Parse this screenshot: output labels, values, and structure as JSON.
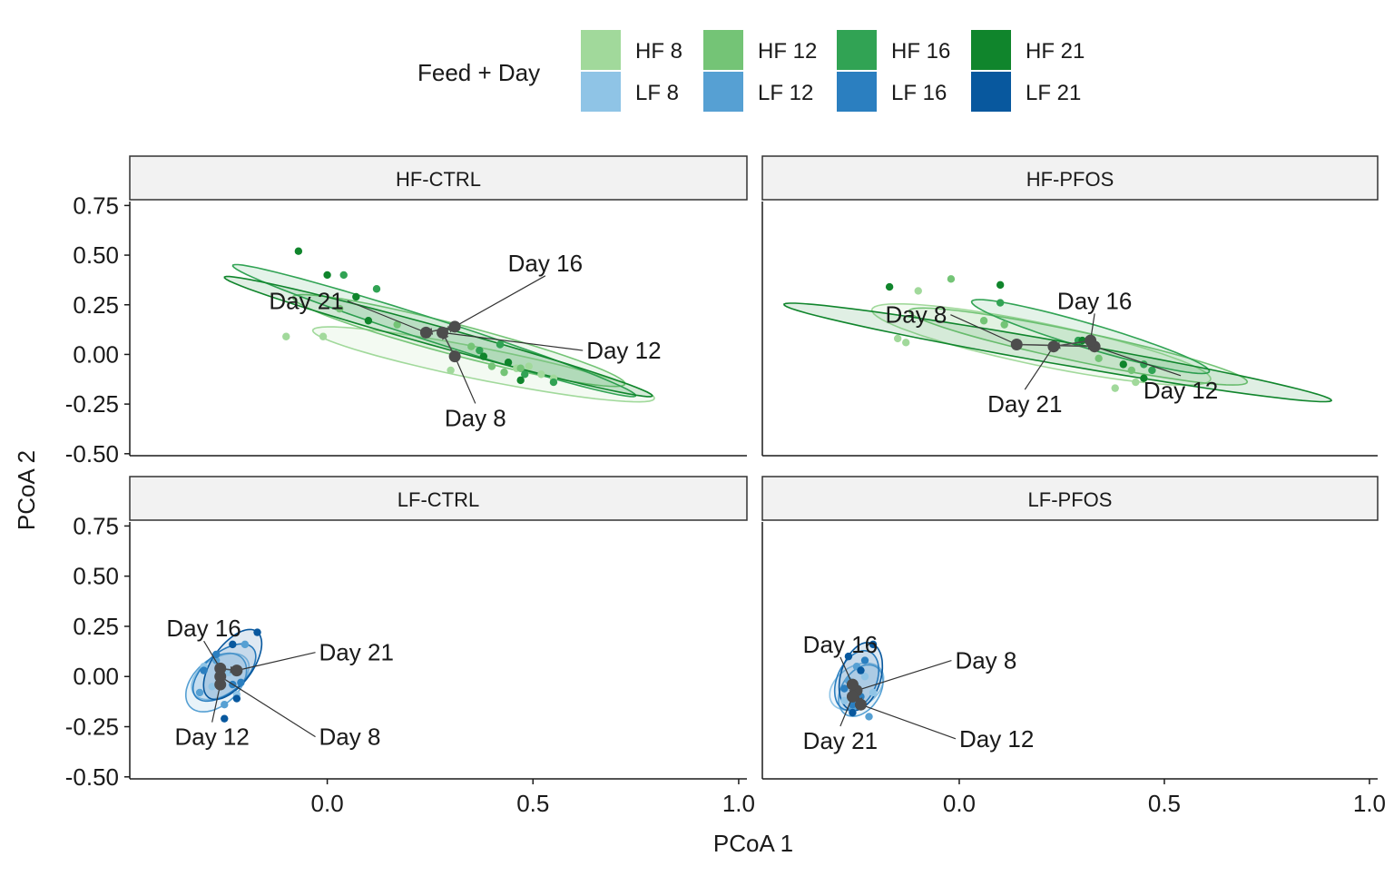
{
  "chart_data": {
    "type": "scatter",
    "xlabel": "PCoA 1",
    "ylabel": "PCoA 2",
    "xlim": [
      -0.48,
      1.02
    ],
    "ylim": [
      -0.51,
      0.77
    ],
    "x_ticks": [
      0.0,
      0.5,
      1.0
    ],
    "x_tick_labels": [
      "0.0",
      "0.5",
      "1.0"
    ],
    "y_ticks": [
      0.75,
      0.5,
      0.25,
      0.0,
      -0.25,
      -0.5
    ],
    "y_tick_labels": [
      "0.75",
      "0.50",
      "0.25",
      "0.00",
      "-0.25",
      "-0.50"
    ],
    "grid": false,
    "legend": {
      "title": "Feed + Day",
      "placement": "top",
      "entries": [
        {
          "label": "HF 8",
          "color": "#a1d99b"
        },
        {
          "label": "HF 12",
          "color": "#74c476"
        },
        {
          "label": "HF 16",
          "color": "#31a354"
        },
        {
          "label": "HF 21",
          "color": "#10852c"
        },
        {
          "label": "LF 8",
          "color": "#8fc4e6"
        },
        {
          "label": "LF 12",
          "color": "#56a0d3"
        },
        {
          "label": "LF 16",
          "color": "#2b7fc0"
        },
        {
          "label": "LF 21",
          "color": "#08589e"
        }
      ]
    },
    "centroid_color": "#4d4d4d",
    "facets": [
      {
        "name": "HF-CTRL",
        "ellipses": [
          {
            "group": "HF 8",
            "cx": 0.38,
            "cy": -0.05,
            "a": 0.45,
            "b": 0.075,
            "angle": -23
          },
          {
            "group": "HF 12",
            "cx": 0.32,
            "cy": 0.07,
            "a": 0.46,
            "b": 0.07,
            "angle": -29
          },
          {
            "group": "HF 16",
            "cx": 0.26,
            "cy": 0.12,
            "a": 0.59,
            "b": 0.05,
            "angle": -34
          },
          {
            "group": "HF 21",
            "cx": 0.27,
            "cy": 0.09,
            "a": 0.6,
            "b": 0.045,
            "angle": -30
          }
        ],
        "points": [
          {
            "group": "HF 8",
            "x": -0.1,
            "y": 0.09
          },
          {
            "group": "HF 8",
            "x": -0.01,
            "y": 0.09
          },
          {
            "group": "HF 8",
            "x": 0.3,
            "y": -0.08
          },
          {
            "group": "HF 8",
            "x": 0.49,
            "y": -0.06
          },
          {
            "group": "HF 8",
            "x": 0.52,
            "y": -0.1
          },
          {
            "group": "HF 8",
            "x": 0.46,
            "y": -0.07
          },
          {
            "group": "HF 8",
            "x": 0.55,
            "y": -0.12
          },
          {
            "group": "HF 12",
            "x": 0.03,
            "y": 0.23
          },
          {
            "group": "HF 12",
            "x": 0.17,
            "y": 0.15
          },
          {
            "group": "HF 12",
            "x": 0.4,
            "y": -0.06
          },
          {
            "group": "HF 12",
            "x": 0.43,
            "y": -0.09
          },
          {
            "group": "HF 12",
            "x": 0.47,
            "y": -0.07
          },
          {
            "group": "HF 12",
            "x": 0.35,
            "y": 0.04
          },
          {
            "group": "HF 16",
            "x": 0.04,
            "y": 0.4
          },
          {
            "group": "HF 16",
            "x": 0.12,
            "y": 0.33
          },
          {
            "group": "HF 16",
            "x": 0.37,
            "y": 0.02
          },
          {
            "group": "HF 16",
            "x": 0.42,
            "y": 0.05
          },
          {
            "group": "HF 16",
            "x": 0.48,
            "y": -0.1
          },
          {
            "group": "HF 16",
            "x": 0.55,
            "y": -0.14
          },
          {
            "group": "HF 21",
            "x": -0.07,
            "y": 0.52
          },
          {
            "group": "HF 21",
            "x": 0.0,
            "y": 0.4
          },
          {
            "group": "HF 21",
            "x": 0.07,
            "y": 0.29
          },
          {
            "group": "HF 21",
            "x": 0.1,
            "y": 0.17
          },
          {
            "group": "HF 21",
            "x": 0.38,
            "y": -0.01
          },
          {
            "group": "HF 21",
            "x": 0.44,
            "y": -0.04
          },
          {
            "group": "HF 21",
            "x": 0.47,
            "y": -0.13
          }
        ],
        "centroids": [
          {
            "label": "Day 8",
            "x": 0.31,
            "y": -0.01,
            "lx": 0.36,
            "ly": -0.32,
            "anchor": "middle"
          },
          {
            "label": "Day 12",
            "x": 0.28,
            "y": 0.11,
            "lx": 0.63,
            "ly": 0.02,
            "anchor": "start"
          },
          {
            "label": "Day 16",
            "x": 0.31,
            "y": 0.14,
            "lx": 0.53,
            "ly": 0.46,
            "anchor": "middle"
          },
          {
            "label": "Day 21",
            "x": 0.24,
            "y": 0.11,
            "lx": 0.04,
            "ly": 0.27,
            "anchor": "end"
          }
        ],
        "arrows": [
          [
            0.31,
            -0.01,
            0.28,
            0.11
          ],
          [
            0.28,
            0.11,
            0.31,
            0.14
          ],
          [
            0.31,
            0.14,
            0.24,
            0.11
          ]
        ]
      },
      {
        "name": "HF-PFOS",
        "ellipses": [
          {
            "group": "HF 8",
            "cx": 0.2,
            "cy": 0.05,
            "a": 0.45,
            "b": 0.1,
            "angle": -24
          },
          {
            "group": "HF 12",
            "cx": 0.29,
            "cy": 0.04,
            "a": 0.45,
            "b": 0.07,
            "angle": -24
          },
          {
            "group": "HF 16",
            "cx": 0.32,
            "cy": 0.09,
            "a": 0.34,
            "b": 0.055,
            "angle": -32
          },
          {
            "group": "HF 21",
            "cx": 0.24,
            "cy": 0.01,
            "a": 0.71,
            "b": 0.055,
            "angle": -20
          }
        ],
        "points": [
          {
            "group": "HF 8",
            "x": -0.15,
            "y": 0.08
          },
          {
            "group": "HF 8",
            "x": -0.13,
            "y": 0.06
          },
          {
            "group": "HF 8",
            "x": -0.1,
            "y": 0.32
          },
          {
            "group": "HF 8",
            "x": 0.38,
            "y": -0.17
          },
          {
            "group": "HF 8",
            "x": 0.43,
            "y": -0.14
          },
          {
            "group": "HF 12",
            "x": -0.02,
            "y": 0.38
          },
          {
            "group": "HF 12",
            "x": 0.06,
            "y": 0.17
          },
          {
            "group": "HF 12",
            "x": 0.11,
            "y": 0.15
          },
          {
            "group": "HF 12",
            "x": 0.34,
            "y": -0.02
          },
          {
            "group": "HF 12",
            "x": 0.42,
            "y": -0.08
          },
          {
            "group": "HF 16",
            "x": 0.1,
            "y": 0.26
          },
          {
            "group": "HF 16",
            "x": 0.29,
            "y": 0.07
          },
          {
            "group": "HF 16",
            "x": 0.45,
            "y": -0.05
          },
          {
            "group": "HF 16",
            "x": 0.47,
            "y": -0.08
          },
          {
            "group": "HF 21",
            "x": -0.17,
            "y": 0.34
          },
          {
            "group": "HF 21",
            "x": 0.1,
            "y": 0.35
          },
          {
            "group": "HF 21",
            "x": 0.3,
            "y": 0.07
          },
          {
            "group": "HF 21",
            "x": 0.4,
            "y": -0.05
          },
          {
            "group": "HF 21",
            "x": 0.45,
            "y": -0.12
          }
        ],
        "centroids": [
          {
            "label": "Day 8",
            "x": 0.14,
            "y": 0.05,
            "lx": -0.03,
            "ly": 0.2,
            "anchor": "end"
          },
          {
            "label": "Day 12",
            "x": 0.33,
            "y": 0.04,
            "lx": 0.54,
            "ly": -0.18,
            "anchor": "middle"
          },
          {
            "label": "Day 16",
            "x": 0.32,
            "y": 0.07,
            "lx": 0.33,
            "ly": 0.27,
            "anchor": "middle"
          },
          {
            "label": "Day 21",
            "x": 0.23,
            "y": 0.04,
            "lx": 0.16,
            "ly": -0.25,
            "anchor": "middle"
          }
        ],
        "arrows": [
          [
            0.14,
            0.05,
            0.33,
            0.04
          ],
          [
            0.33,
            0.04,
            0.32,
            0.07
          ],
          [
            0.32,
            0.07,
            0.23,
            0.04
          ]
        ]
      },
      {
        "name": "LF-CTRL",
        "ellipses": [
          {
            "group": "LF 8",
            "cx": -0.26,
            "cy": 0.0,
            "a": 0.12,
            "b": 0.06,
            "angle": 70
          },
          {
            "group": "LF 12",
            "cx": -0.27,
            "cy": -0.03,
            "a": 0.15,
            "b": 0.065,
            "angle": 75
          },
          {
            "group": "LF 16",
            "cx": -0.25,
            "cy": 0.02,
            "a": 0.15,
            "b": 0.06,
            "angle": 70
          },
          {
            "group": "LF 21",
            "cx": -0.23,
            "cy": 0.06,
            "a": 0.18,
            "b": 0.055,
            "angle": 75
          }
        ],
        "points": [
          {
            "group": "LF 8",
            "x": -0.3,
            "y": 0.05
          },
          {
            "group": "LF 8",
            "x": -0.28,
            "y": -0.05
          },
          {
            "group": "LF 8",
            "x": -0.24,
            "y": 0.02
          },
          {
            "group": "LF 8",
            "x": -0.22,
            "y": -0.09
          },
          {
            "group": "LF 12",
            "x": -0.31,
            "y": -0.08
          },
          {
            "group": "LF 12",
            "x": -0.27,
            "y": 0.08
          },
          {
            "group": "LF 12",
            "x": -0.25,
            "y": -0.14
          },
          {
            "group": "LF 12",
            "x": -0.2,
            "y": 0.16
          },
          {
            "group": "LF 16",
            "x": -0.3,
            "y": 0.03
          },
          {
            "group": "LF 16",
            "x": -0.23,
            "y": -0.04
          },
          {
            "group": "LF 16",
            "x": -0.21,
            "y": -0.03
          },
          {
            "group": "LF 16",
            "x": -0.27,
            "y": 0.11
          },
          {
            "group": "LF 21",
            "x": -0.23,
            "y": 0.16
          },
          {
            "group": "LF 21",
            "x": -0.17,
            "y": 0.22
          },
          {
            "group": "LF 21",
            "x": -0.25,
            "y": -0.21
          },
          {
            "group": "LF 21",
            "x": -0.22,
            "y": -0.11
          }
        ],
        "centroids": [
          {
            "label": "Day 8",
            "x": -0.26,
            "y": 0.0,
            "lx": -0.02,
            "ly": -0.3,
            "anchor": "start"
          },
          {
            "label": "Day 12",
            "x": -0.26,
            "y": -0.04,
            "lx": -0.28,
            "ly": -0.3,
            "anchor": "middle"
          },
          {
            "label": "Day 16",
            "x": -0.26,
            "y": 0.04,
            "lx": -0.3,
            "ly": 0.24,
            "anchor": "middle"
          },
          {
            "label": "Day 21",
            "x": -0.22,
            "y": 0.03,
            "lx": -0.02,
            "ly": 0.12,
            "anchor": "start"
          }
        ],
        "arrows": [
          [
            -0.26,
            0.0,
            -0.26,
            -0.04
          ],
          [
            -0.26,
            -0.04,
            -0.26,
            0.04
          ],
          [
            -0.26,
            0.04,
            -0.22,
            0.03
          ]
        ]
      },
      {
        "name": "LF-PFOS",
        "ellipses": [
          {
            "group": "LF 8",
            "cx": -0.25,
            "cy": -0.05,
            "a": 0.12,
            "b": 0.06,
            "angle": 75
          },
          {
            "group": "LF 12",
            "cx": -0.24,
            "cy": -0.07,
            "a": 0.13,
            "b": 0.05,
            "angle": 80
          },
          {
            "group": "LF 16",
            "cx": -0.25,
            "cy": -0.02,
            "a": 0.15,
            "b": 0.05,
            "angle": 82
          },
          {
            "group": "LF 21",
            "cx": -0.24,
            "cy": 0.0,
            "a": 0.17,
            "b": 0.05,
            "angle": 84
          }
        ],
        "points": [
          {
            "group": "LF 8",
            "x": -0.28,
            "y": -0.12
          },
          {
            "group": "LF 8",
            "x": -0.25,
            "y": -0.05
          },
          {
            "group": "LF 8",
            "x": -0.23,
            "y": 0.0
          },
          {
            "group": "LF 8",
            "x": -0.21,
            "y": -0.08
          },
          {
            "group": "LF 12",
            "x": -0.27,
            "y": -0.02
          },
          {
            "group": "LF 12",
            "x": -0.26,
            "y": -0.16
          },
          {
            "group": "LF 12",
            "x": -0.22,
            "y": -0.2
          },
          {
            "group": "LF 12",
            "x": -0.25,
            "y": 0.05
          },
          {
            "group": "LF 16",
            "x": -0.28,
            "y": -0.06
          },
          {
            "group": "LF 16",
            "x": -0.24,
            "y": -0.1
          },
          {
            "group": "LF 16",
            "x": -0.23,
            "y": 0.08
          },
          {
            "group": "LF 16",
            "x": -0.26,
            "y": -0.14
          },
          {
            "group": "LF 21",
            "x": -0.21,
            "y": 0.16
          },
          {
            "group": "LF 21",
            "x": -0.26,
            "y": -0.18
          },
          {
            "group": "LF 21",
            "x": -0.24,
            "y": 0.03
          },
          {
            "group": "LF 21",
            "x": -0.27,
            "y": 0.1
          }
        ],
        "centroids": [
          {
            "label": "Day 8",
            "x": -0.25,
            "y": -0.07,
            "lx": -0.01,
            "ly": 0.08,
            "anchor": "start"
          },
          {
            "label": "Day 12",
            "x": -0.24,
            "y": -0.14,
            "lx": 0.0,
            "ly": -0.31,
            "anchor": "start"
          },
          {
            "label": "Day 16",
            "x": -0.26,
            "y": -0.04,
            "lx": -0.29,
            "ly": 0.16,
            "anchor": "middle"
          },
          {
            "label": "Day 21",
            "x": -0.26,
            "y": -0.1,
            "lx": -0.29,
            "ly": -0.32,
            "anchor": "middle"
          }
        ],
        "arrows": [
          [
            -0.25,
            -0.07,
            -0.24,
            -0.14
          ],
          [
            -0.24,
            -0.14,
            -0.26,
            -0.04
          ],
          [
            -0.26,
            -0.04,
            -0.26,
            -0.1
          ]
        ]
      }
    ]
  }
}
